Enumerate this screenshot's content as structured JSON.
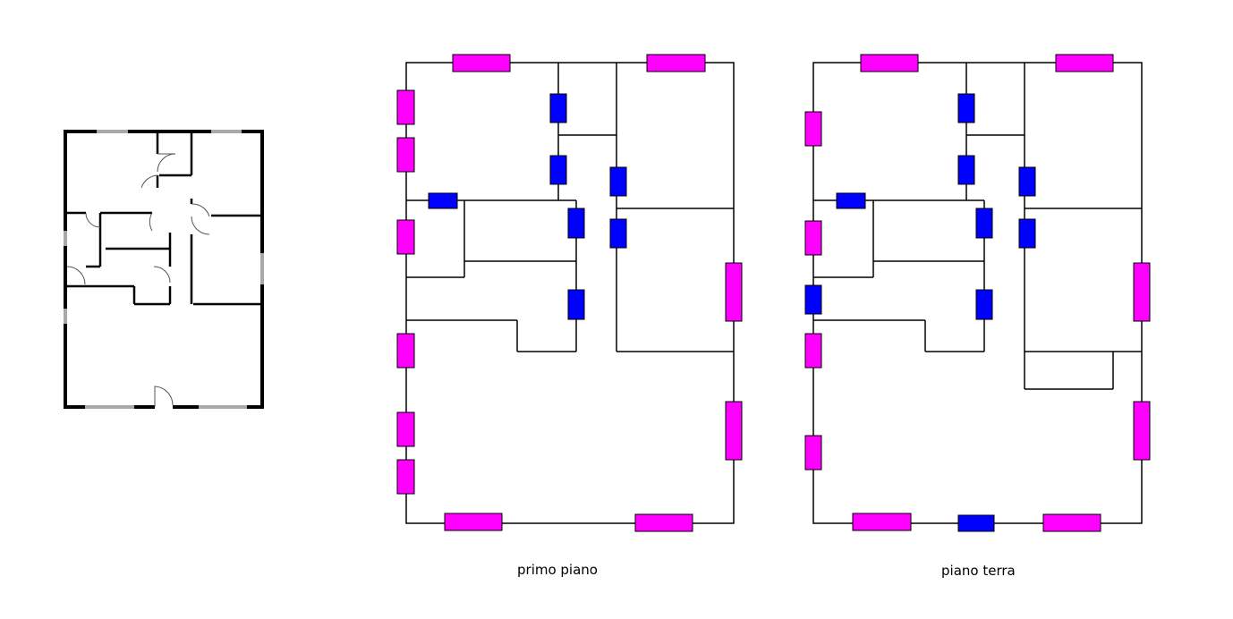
{
  "plans": [
    {
      "id": "primo",
      "caption": "primo piano"
    },
    {
      "id": "terra",
      "caption": "piano terra"
    }
  ],
  "colors": {
    "wall": "#000000",
    "window": "#ff00ff",
    "door": "#0000ff",
    "sketch_window": "#a0a0a0",
    "background": "#ffffff"
  }
}
